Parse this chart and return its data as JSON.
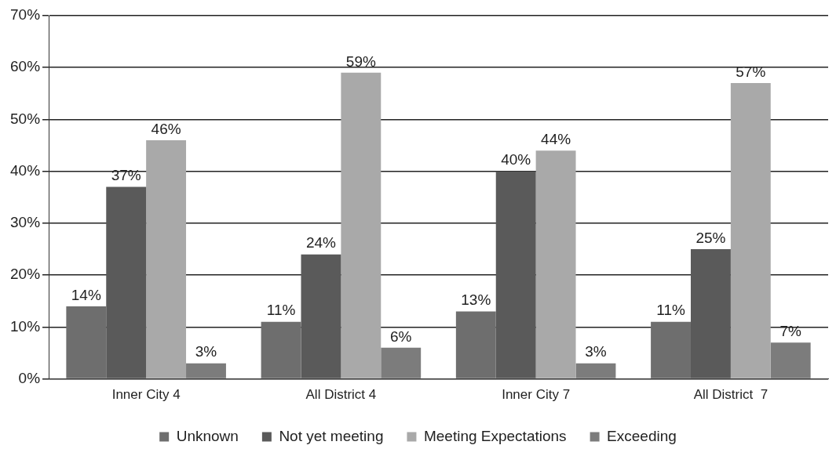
{
  "chart_data": {
    "type": "bar",
    "categories": [
      "Inner City 4",
      "All District 4",
      "Inner City 7",
      "All District  7"
    ],
    "series": [
      {
        "name": "Unknown",
        "color": "#6e6e6e",
        "values": [
          14,
          11,
          13,
          11
        ],
        "value_labels": [
          "14%",
          "11%",
          "13%",
          "11%"
        ]
      },
      {
        "name": "Not yet meeting",
        "color": "#5a5a5a",
        "values": [
          37,
          24,
          40,
          25
        ],
        "value_labels": [
          "37%",
          "24%",
          "40%",
          "25%"
        ]
      },
      {
        "name": "Meeting Expectations",
        "color": "#a9a9a9",
        "values": [
          46,
          59,
          44,
          57
        ],
        "value_labels": [
          "46%",
          "59%",
          "44%",
          "57%"
        ]
      },
      {
        "name": "Exceeding",
        "color": "#7c7c7c",
        "values": [
          3,
          6,
          3,
          7
        ],
        "value_labels": [
          "3%",
          "6%",
          "3%",
          "7%"
        ]
      }
    ],
    "ylim": [
      0,
      70
    ],
    "yticks": [
      {
        "value": 0,
        "label": "0%"
      },
      {
        "value": 10,
        "label": "10%"
      },
      {
        "value": 20,
        "label": "20%"
      },
      {
        "value": 30,
        "label": "30%"
      },
      {
        "value": 40,
        "label": "40%"
      },
      {
        "value": 50,
        "label": "50%"
      },
      {
        "value": 60,
        "label": "60%"
      },
      {
        "value": 70,
        "label": "70%"
      }
    ],
    "grid": "y",
    "legend": "bottom"
  }
}
